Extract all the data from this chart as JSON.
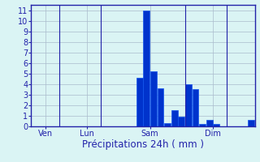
{
  "bars": [
    {
      "x": 0,
      "height": 0
    },
    {
      "x": 1,
      "height": 0
    },
    {
      "x": 2,
      "height": 0
    },
    {
      "x": 3,
      "height": 0
    },
    {
      "x": 4,
      "height": 0
    },
    {
      "x": 5,
      "height": 0
    },
    {
      "x": 6,
      "height": 0
    },
    {
      "x": 7,
      "height": 0
    },
    {
      "x": 8,
      "height": 0
    },
    {
      "x": 9,
      "height": 0
    },
    {
      "x": 10,
      "height": 0
    },
    {
      "x": 11,
      "height": 0
    },
    {
      "x": 12,
      "height": 0
    },
    {
      "x": 13,
      "height": 0
    },
    {
      "x": 14,
      "height": 0
    },
    {
      "x": 15,
      "height": 4.6
    },
    {
      "x": 16,
      "height": 11.0
    },
    {
      "x": 17,
      "height": 5.2
    },
    {
      "x": 18,
      "height": 3.6
    },
    {
      "x": 19,
      "height": 0.3
    },
    {
      "x": 20,
      "height": 1.5
    },
    {
      "x": 21,
      "height": 0.9
    },
    {
      "x": 22,
      "height": 4.0
    },
    {
      "x": 23,
      "height": 3.5
    },
    {
      "x": 24,
      "height": 0.2
    },
    {
      "x": 25,
      "height": 0.6
    },
    {
      "x": 26,
      "height": 0.2
    },
    {
      "x": 27,
      "height": 0
    },
    {
      "x": 28,
      "height": 0
    },
    {
      "x": 29,
      "height": 0
    },
    {
      "x": 30,
      "height": 0
    },
    {
      "x": 31,
      "height": 0.6
    }
  ],
  "bar_color": "#0033cc",
  "bar_edge_color": "#1155ee",
  "xlabel": "Précipitations 24h ( mm )",
  "ylim": [
    0,
    11.5
  ],
  "yticks": [
    0,
    1,
    2,
    3,
    4,
    5,
    6,
    7,
    8,
    9,
    10,
    11
  ],
  "xlim": [
    -0.5,
    31.5
  ],
  "day_labels": [
    {
      "x": 1.5,
      "label": "Ven"
    },
    {
      "x": 7.5,
      "label": "Lun"
    },
    {
      "x": 16.5,
      "label": "Sam"
    },
    {
      "x": 25.5,
      "label": "Dim"
    }
  ],
  "vline_positions": [
    3.5,
    9.5,
    21.5,
    27.5
  ],
  "background_color": "#daf4f4",
  "grid_color": "#aabbcc",
  "axis_color": "#2222aa",
  "text_color": "#2222aa",
  "xlabel_fontsize": 8.5,
  "tick_fontsize": 7
}
